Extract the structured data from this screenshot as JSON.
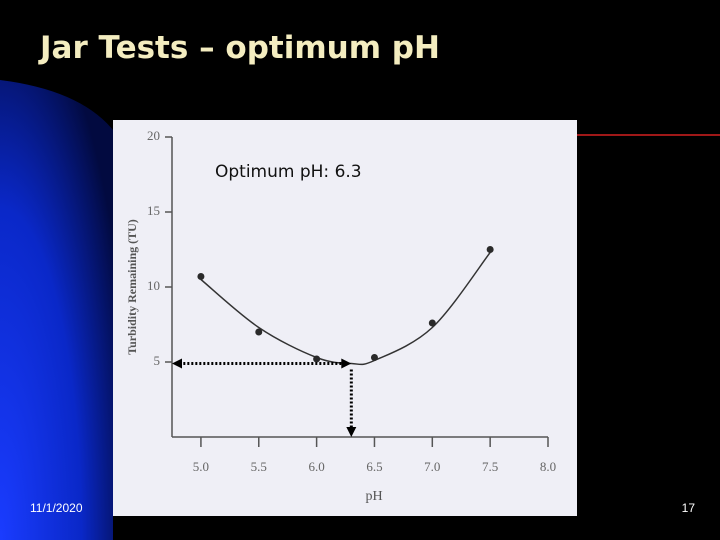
{
  "slide": {
    "title": "Jar Tests – optimum pH",
    "date": "11/1/2020",
    "page_number": "17"
  },
  "chart_data": {
    "type": "scatter",
    "annotation": "Optimum pH: 6.3",
    "y_label": "Turbidity Remaining (TU)",
    "x_label": "pH",
    "x": [
      5.0,
      5.5,
      6.0,
      6.5,
      7.0,
      7.5
    ],
    "values": [
      10.7,
      7.0,
      5.2,
      5.3,
      7.6,
      12.5
    ],
    "color": "#2a2a2a",
    "fit_curve": {
      "x": [
        5.0,
        5.5,
        6.0,
        6.3,
        6.5,
        7.0,
        7.5
      ],
      "values": [
        10.5,
        7.3,
        5.3,
        4.9,
        5.1,
        7.3,
        12.3
      ]
    },
    "optimum": {
      "x": 6.3,
      "y": 4.9
    },
    "xlim": [
      4.75,
      8.0
    ],
    "ylim": [
      0,
      20
    ],
    "xticks": [
      {
        "value": 5,
        "label": "5.0"
      },
      5.5,
      {
        "value": 6,
        "label": "6.0"
      },
      6.5,
      {
        "value": 7,
        "label": "7.0"
      },
      7.5,
      {
        "value": 8,
        "label": "8.0"
      }
    ],
    "yticks": [
      5,
      10,
      15,
      20
    ]
  }
}
